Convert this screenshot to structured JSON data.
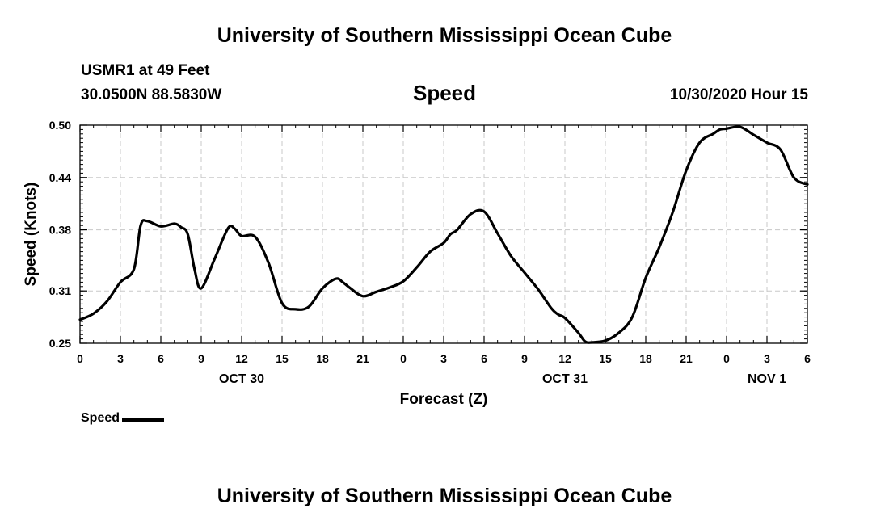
{
  "header": {
    "title": "University of Southern Mississippi Ocean Cube",
    "footer_title": "University of Southern Mississippi Ocean Cube",
    "station": "USMR1 at 49 Feet",
    "coords": "30.0500N 88.5830W",
    "chart_title": "Speed",
    "datetime": "10/30/2020 Hour 15"
  },
  "legend": {
    "label": "Speed"
  },
  "chart_data": {
    "type": "line",
    "title": "Speed",
    "xlabel": "Forecast (Z)",
    "ylabel": "Speed (Knots)",
    "xlim": [
      0,
      54
    ],
    "ylim": [
      0.25,
      0.5
    ],
    "yticks": [
      0.25,
      0.31,
      0.38,
      0.44,
      0.5
    ],
    "ytick_labels": [
      "0.25",
      "0.31",
      "0.38",
      "0.44",
      "0.50"
    ],
    "xtick_labels": [
      "0",
      "3",
      "6",
      "9",
      "12",
      "15",
      "18",
      "21",
      "0",
      "3",
      "6",
      "9",
      "12",
      "15",
      "18",
      "21",
      "0",
      "3",
      "6"
    ],
    "day_labels": [
      {
        "label": "OCT 30",
        "at": 12
      },
      {
        "label": "OCT 31",
        "at": 36
      },
      {
        "label": "NOV 1",
        "at": 51
      }
    ],
    "grid": true,
    "legend_position": "bottom-left",
    "series": [
      {
        "name": "Speed",
        "color": "#000000",
        "x": [
          0,
          1,
          2,
          3,
          4,
          4.5,
          5,
          6,
          7,
          7.5,
          8,
          8.5,
          9,
          10,
          11,
          11.5,
          12,
          13,
          14,
          15,
          16,
          17,
          18,
          19,
          19.5,
          20,
          21,
          22,
          23,
          24,
          25,
          26,
          27,
          27.5,
          28,
          29,
          30,
          31,
          32,
          33,
          34,
          35,
          35.5,
          36,
          37,
          37.5,
          38,
          39,
          40,
          41,
          42,
          43,
          44,
          45,
          46,
          47,
          47.5,
          48,
          49,
          50,
          51,
          52,
          53,
          54
        ],
        "y": [
          0.277,
          0.284,
          0.298,
          0.32,
          0.335,
          0.385,
          0.39,
          0.384,
          0.387,
          0.383,
          0.375,
          0.335,
          0.313,
          0.347,
          0.382,
          0.381,
          0.373,
          0.372,
          0.342,
          0.296,
          0.289,
          0.292,
          0.313,
          0.324,
          0.32,
          0.314,
          0.304,
          0.309,
          0.314,
          0.321,
          0.337,
          0.355,
          0.365,
          0.375,
          0.38,
          0.398,
          0.401,
          0.376,
          0.35,
          0.331,
          0.312,
          0.29,
          0.283,
          0.279,
          0.262,
          0.252,
          0.251,
          0.253,
          0.262,
          0.28,
          0.325,
          0.36,
          0.4,
          0.448,
          0.48,
          0.49,
          0.495,
          0.496,
          0.498,
          0.489,
          0.48,
          0.472,
          0.44,
          0.432
        ]
      }
    ]
  }
}
